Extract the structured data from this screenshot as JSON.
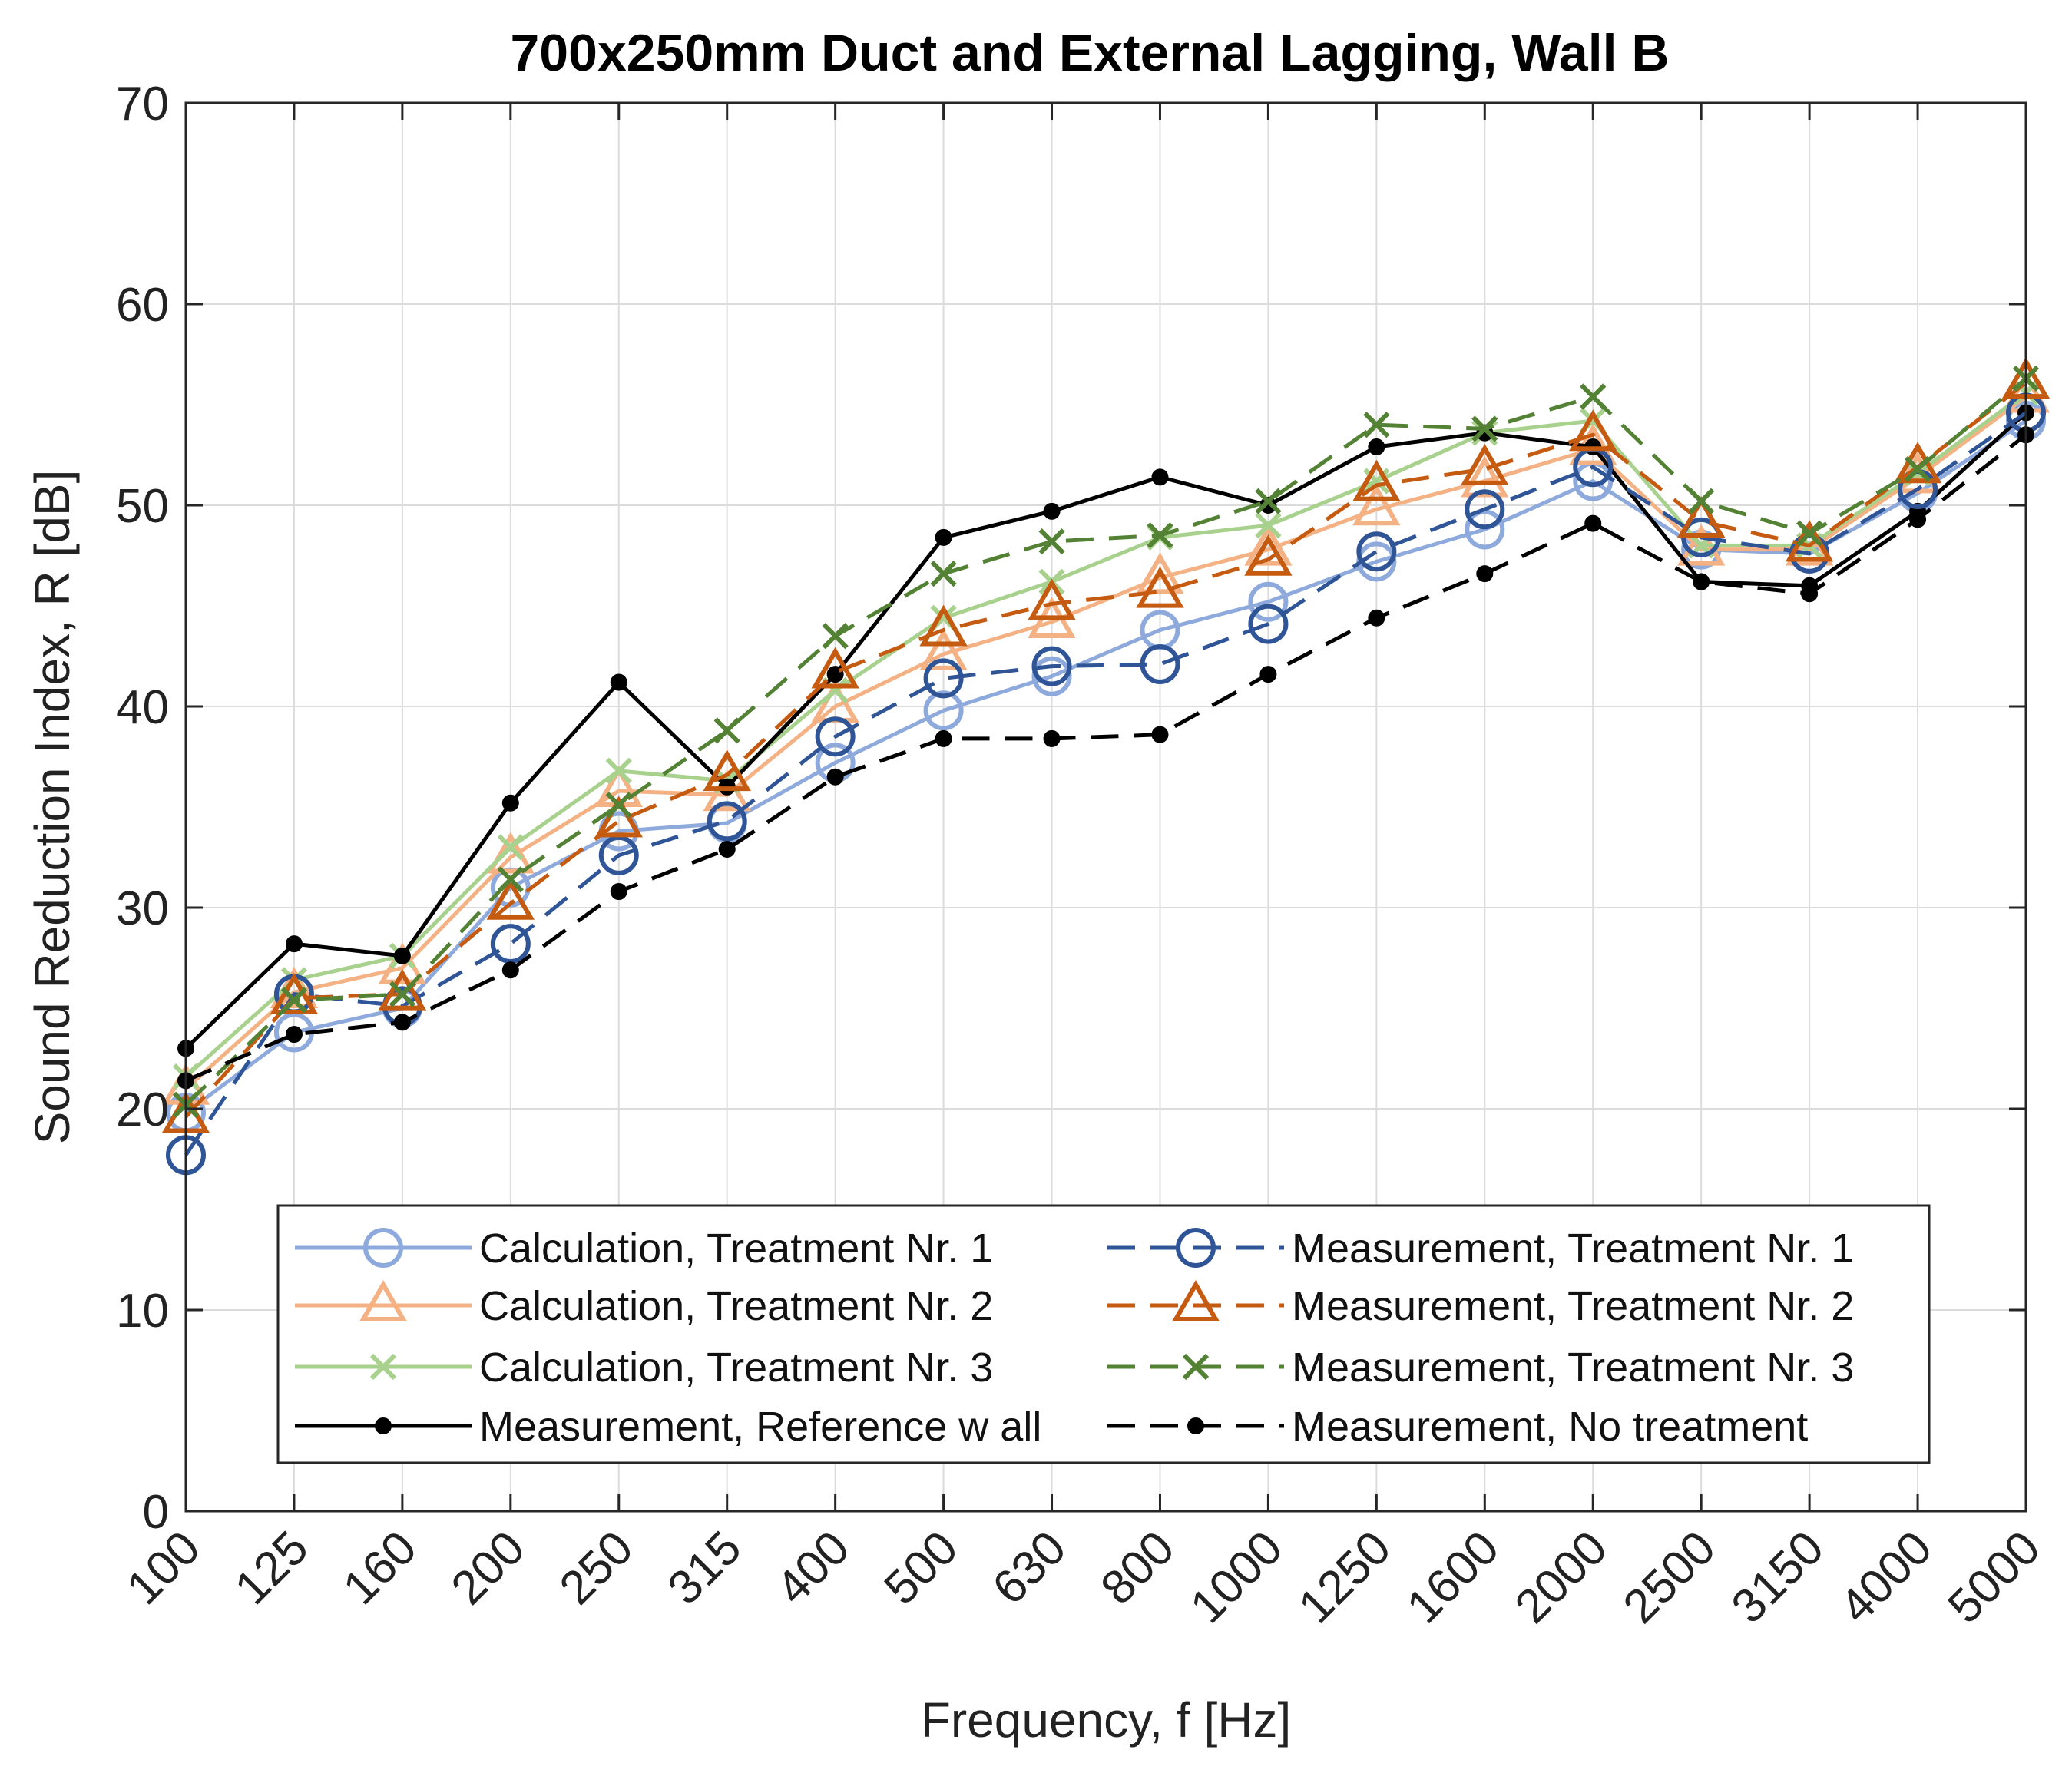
{
  "chart_data": {
    "type": "line",
    "title": "700x250mm Duct and External Lagging, Wall B",
    "xlabel": "Frequency, f [Hz]",
    "ylabel": "Sound Reduction Index,  R [dB]",
    "categories": [
      "100",
      "125",
      "160",
      "200",
      "250",
      "315",
      "400",
      "500",
      "630",
      "800",
      "1000",
      "1250",
      "1600",
      "2000",
      "2500",
      "3150",
      "4000",
      "5000"
    ],
    "yticks": [
      "0",
      "10",
      "20",
      "30",
      "40",
      "50",
      "60",
      "70"
    ],
    "ylim": [
      0,
      70
    ],
    "grid": true,
    "legend_position": "bottom-center",
    "series": [
      {
        "name": "Calculation, Treatment Nr. 1",
        "color": "#8ea9db",
        "dash": "solid",
        "marker": "circle-open",
        "values": [
          19.8,
          23.8,
          25.0,
          31.0,
          33.8,
          34.2,
          37.2,
          39.8,
          41.5,
          43.8,
          45.2,
          47.2,
          48.8,
          51.2,
          47.8,
          47.6,
          50.6,
          54.2
        ]
      },
      {
        "name": "Calculation, Treatment Nr. 2",
        "color": "#f4b183",
        "dash": "solid",
        "marker": "triangle-open",
        "values": [
          21.0,
          25.8,
          27.0,
          32.5,
          35.8,
          35.6,
          40.0,
          42.6,
          44.2,
          46.4,
          47.8,
          49.8,
          51.2,
          52.8,
          47.8,
          47.8,
          51.4,
          55.4
        ]
      },
      {
        "name": "Calculation, Treatment Nr. 3",
        "color": "#a9d18e",
        "dash": "solid",
        "marker": "x",
        "values": [
          21.6,
          26.4,
          27.6,
          33.0,
          36.8,
          36.3,
          40.8,
          44.4,
          46.2,
          48.4,
          49.0,
          51.2,
          53.6,
          54.2,
          48.0,
          48.0,
          51.6,
          55.6
        ]
      },
      {
        "name": "Measurement, Reference w all",
        "color": "#000000",
        "dash": "solid",
        "marker": "dot",
        "values": [
          23.0,
          28.2,
          27.6,
          35.2,
          41.2,
          36.0,
          41.6,
          48.4,
          49.7,
          51.4,
          50.0,
          52.9,
          53.6,
          52.9,
          46.2,
          46.0,
          49.7,
          54.6
        ]
      },
      {
        "name": "Measurement, Treatment Nr. 1",
        "color": "#2f5597",
        "dash": "dashed",
        "marker": "circle-open",
        "values": [
          17.7,
          25.7,
          25.1,
          28.2,
          32.6,
          34.3,
          38.5,
          41.4,
          42.0,
          42.1,
          44.1,
          47.7,
          49.8,
          51.9,
          48.4,
          47.6,
          50.8,
          54.6
        ]
      },
      {
        "name": "Measurement, Treatment Nr. 2",
        "color": "#c55a11",
        "dash": "dashed",
        "marker": "triangle-open",
        "values": [
          19.6,
          25.5,
          25.7,
          30.2,
          34.3,
          36.6,
          41.7,
          43.8,
          45.1,
          45.7,
          47.3,
          51.0,
          51.8,
          53.5,
          49.2,
          48.0,
          51.9,
          56.1
        ]
      },
      {
        "name": "Measurement, Treatment Nr. 3",
        "color": "#548235",
        "dash": "dashed",
        "marker": "x",
        "values": [
          20.2,
          25.4,
          25.7,
          31.4,
          35.1,
          38.8,
          43.5,
          46.6,
          48.2,
          48.5,
          50.2,
          54.0,
          53.8,
          55.4,
          50.2,
          48.6,
          51.8,
          56.3
        ]
      },
      {
        "name": "Measurement, No treatment",
        "color": "#000000",
        "dash": "dashed",
        "marker": "dot",
        "values": [
          21.4,
          23.7,
          24.3,
          26.9,
          30.8,
          32.9,
          36.5,
          38.4,
          38.4,
          38.6,
          41.6,
          44.4,
          46.6,
          49.1,
          46.2,
          45.6,
          49.3,
          53.5
        ]
      }
    ]
  }
}
